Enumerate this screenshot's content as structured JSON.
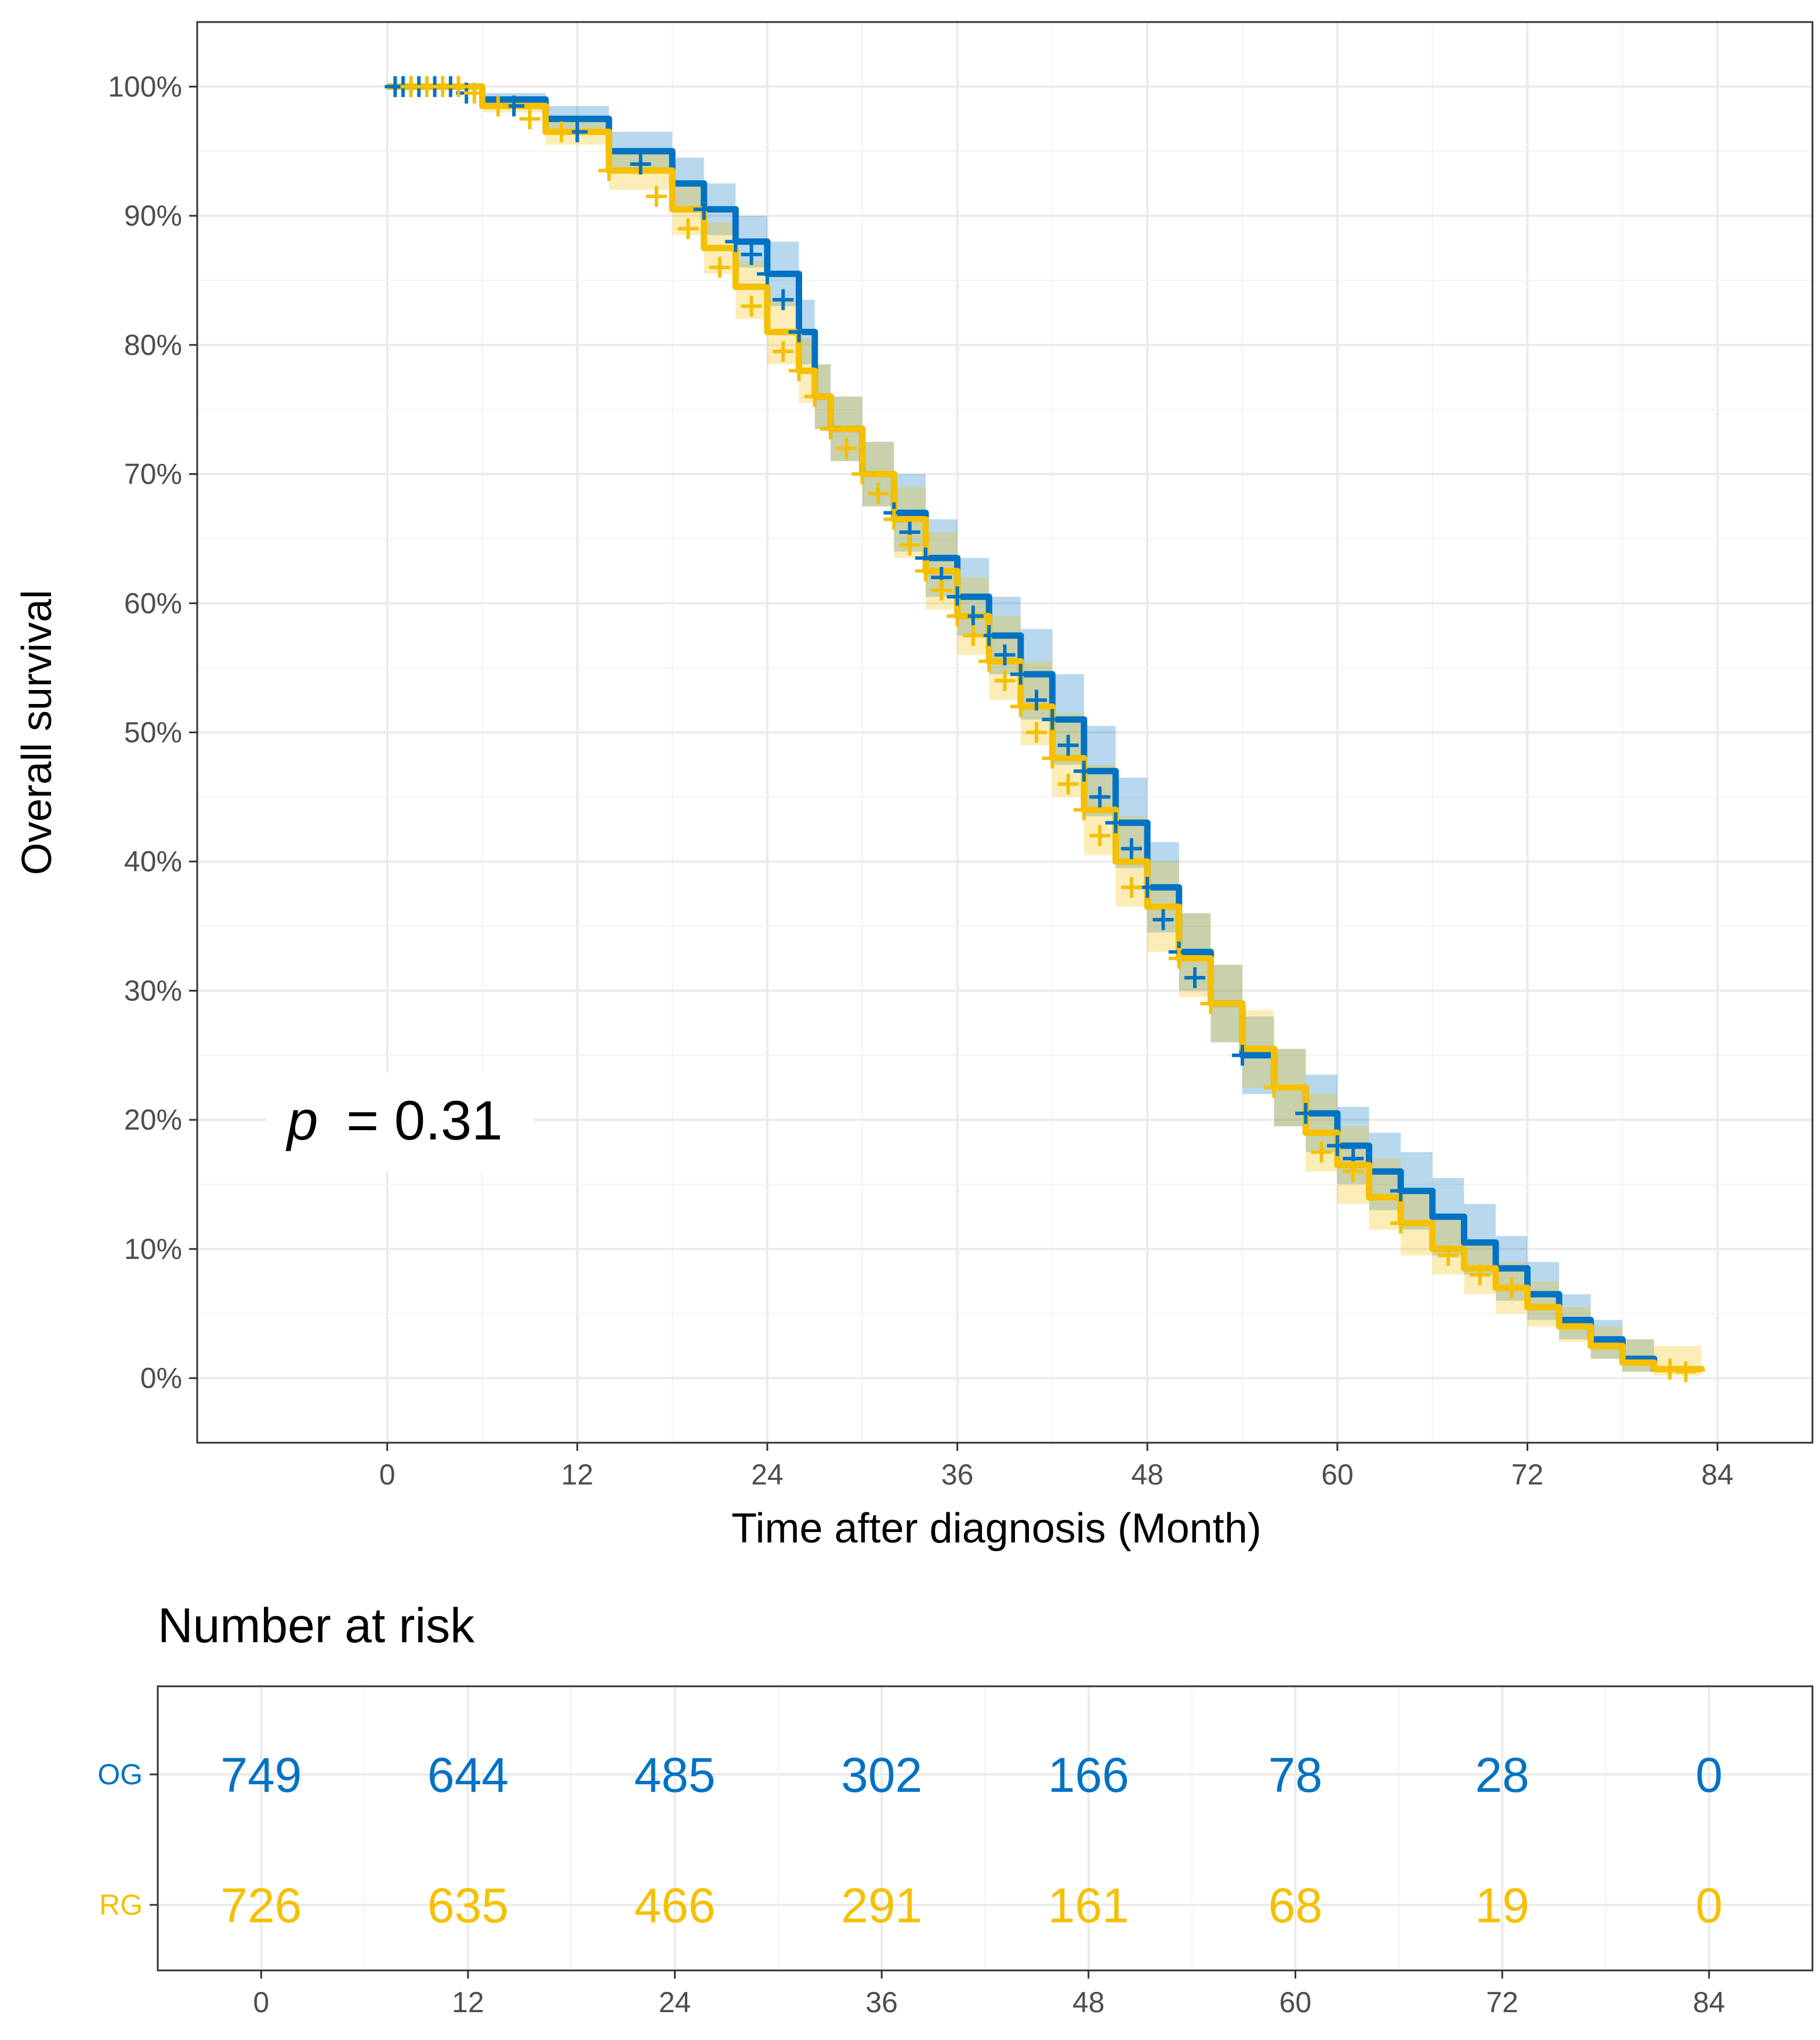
{
  "colors": {
    "OG": "#0072c3",
    "RG": "#f5c000"
  },
  "chart_data": [
    {
      "type": "line",
      "subtype": "kaplan-meier",
      "xlabel": "Time after diagnosis (Month)",
      "ylabel": "Overall survival",
      "xlim": [
        -12,
        90
      ],
      "ylim": [
        -0.05,
        1.05
      ],
      "x_ticks": [
        0,
        12,
        24,
        36,
        48,
        60,
        72,
        84
      ],
      "y_ticks": [
        0,
        0.1,
        0.2,
        0.3,
        0.4,
        0.5,
        0.6,
        0.7,
        0.8,
        0.9,
        1.0
      ],
      "y_tick_labels": [
        "0%",
        "10%",
        "20%",
        "30%",
        "40%",
        "50%",
        "60%",
        "70%",
        "80%",
        "90%",
        "100%"
      ],
      "grid": true,
      "annotation": {
        "p_symbol": "p",
        "p_text": "= 0.31"
      },
      "series": [
        {
          "group": "OG",
          "x": [
            0,
            6,
            10,
            14,
            18,
            20,
            22,
            24,
            26,
            27,
            28,
            30,
            32,
            34,
            36,
            38,
            40,
            42,
            44,
            46,
            48,
            50,
            52,
            54,
            56,
            58,
            60,
            62,
            64,
            66,
            68,
            70,
            72,
            74,
            76,
            78,
            80
          ],
          "y": [
            1.0,
            0.99,
            0.975,
            0.95,
            0.925,
            0.905,
            0.88,
            0.855,
            0.81,
            0.76,
            0.735,
            0.7,
            0.67,
            0.635,
            0.605,
            0.575,
            0.545,
            0.51,
            0.47,
            0.43,
            0.38,
            0.33,
            0.29,
            0.25,
            0.225,
            0.205,
            0.18,
            0.16,
            0.145,
            0.125,
            0.105,
            0.085,
            0.065,
            0.045,
            0.03,
            0.015,
            0.005
          ],
          "lower": [
            1.0,
            0.985,
            0.965,
            0.935,
            0.905,
            0.885,
            0.86,
            0.83,
            0.785,
            0.735,
            0.71,
            0.675,
            0.64,
            0.605,
            0.575,
            0.545,
            0.51,
            0.475,
            0.435,
            0.395,
            0.345,
            0.3,
            0.26,
            0.22,
            0.195,
            0.175,
            0.15,
            0.13,
            0.115,
            0.095,
            0.08,
            0.06,
            0.045,
            0.03,
            0.015,
            0.005,
            0.0
          ],
          "upper": [
            1.0,
            0.995,
            0.985,
            0.965,
            0.945,
            0.925,
            0.9,
            0.88,
            0.835,
            0.785,
            0.76,
            0.725,
            0.7,
            0.665,
            0.635,
            0.605,
            0.58,
            0.545,
            0.505,
            0.465,
            0.415,
            0.36,
            0.32,
            0.28,
            0.255,
            0.235,
            0.21,
            0.19,
            0.175,
            0.155,
            0.135,
            0.11,
            0.09,
            0.065,
            0.045,
            0.03,
            0.02
          ],
          "censor_x": [
            0.5,
            1,
            1.5,
            2,
            3,
            4,
            5,
            8,
            12,
            16,
            20,
            22,
            23,
            24,
            25,
            26,
            28,
            30,
            31,
            32,
            33,
            34,
            35,
            36,
            37,
            38,
            39,
            40,
            41,
            42,
            43,
            44,
            45,
            46,
            47,
            48,
            49,
            50,
            51,
            54,
            58,
            60,
            61,
            64
          ],
          "censor_y": [
            1.0,
            1.0,
            1.0,
            1.0,
            1.0,
            1.0,
            0.995,
            0.985,
            0.965,
            0.94,
            0.905,
            0.88,
            0.87,
            0.855,
            0.835,
            0.81,
            0.735,
            0.7,
            0.685,
            0.67,
            0.655,
            0.635,
            0.62,
            0.605,
            0.59,
            0.575,
            0.56,
            0.545,
            0.525,
            0.51,
            0.49,
            0.47,
            0.45,
            0.43,
            0.41,
            0.38,
            0.355,
            0.33,
            0.31,
            0.25,
            0.205,
            0.18,
            0.17,
            0.145
          ]
        },
        {
          "group": "RG",
          "x": [
            0,
            6,
            10,
            14,
            18,
            20,
            22,
            24,
            26,
            27,
            28,
            30,
            32,
            34,
            36,
            38,
            40,
            42,
            44,
            46,
            48,
            50,
            52,
            54,
            56,
            58,
            60,
            62,
            64,
            66,
            68,
            70,
            72,
            74,
            76,
            78,
            80,
            83
          ],
          "y": [
            1.0,
            0.985,
            0.965,
            0.935,
            0.905,
            0.875,
            0.845,
            0.81,
            0.78,
            0.76,
            0.735,
            0.7,
            0.665,
            0.625,
            0.59,
            0.555,
            0.52,
            0.48,
            0.44,
            0.4,
            0.365,
            0.325,
            0.29,
            0.255,
            0.225,
            0.19,
            0.165,
            0.14,
            0.12,
            0.1,
            0.085,
            0.07,
            0.055,
            0.04,
            0.025,
            0.012,
            0.007,
            0.005
          ],
          "lower": [
            1.0,
            0.98,
            0.955,
            0.92,
            0.885,
            0.855,
            0.82,
            0.785,
            0.755,
            0.735,
            0.71,
            0.675,
            0.635,
            0.595,
            0.56,
            0.525,
            0.49,
            0.45,
            0.405,
            0.365,
            0.33,
            0.295,
            0.26,
            0.225,
            0.195,
            0.16,
            0.135,
            0.115,
            0.095,
            0.08,
            0.065,
            0.05,
            0.04,
            0.028,
            0.015,
            0.005,
            0.002,
            0.0
          ],
          "upper": [
            1.0,
            0.99,
            0.975,
            0.95,
            0.925,
            0.895,
            0.865,
            0.835,
            0.805,
            0.785,
            0.76,
            0.725,
            0.69,
            0.655,
            0.62,
            0.59,
            0.555,
            0.515,
            0.475,
            0.435,
            0.4,
            0.36,
            0.32,
            0.285,
            0.255,
            0.22,
            0.195,
            0.17,
            0.145,
            0.125,
            0.105,
            0.09,
            0.075,
            0.055,
            0.04,
            0.03,
            0.025,
            0.025
          ],
          "censor_x": [
            1.5,
            2.5,
            3.5,
            4.5,
            5.5,
            7,
            9,
            11,
            14,
            17,
            19,
            21,
            23,
            25,
            26,
            27,
            28,
            29,
            30,
            31,
            32,
            33,
            34,
            35,
            36,
            37,
            38,
            39,
            40,
            41,
            42,
            43,
            44,
            45,
            47,
            50,
            52,
            56,
            59,
            61,
            64,
            67,
            69,
            71,
            81,
            82
          ],
          "censor_y": [
            1.0,
            1.0,
            1.0,
            1.0,
            0.995,
            0.985,
            0.975,
            0.965,
            0.935,
            0.915,
            0.89,
            0.86,
            0.83,
            0.795,
            0.78,
            0.76,
            0.735,
            0.72,
            0.7,
            0.685,
            0.665,
            0.645,
            0.625,
            0.61,
            0.59,
            0.575,
            0.555,
            0.54,
            0.52,
            0.5,
            0.48,
            0.46,
            0.44,
            0.42,
            0.38,
            0.325,
            0.29,
            0.225,
            0.175,
            0.16,
            0.12,
            0.095,
            0.08,
            0.07,
            0.007,
            0.005
          ]
        }
      ]
    },
    {
      "type": "table",
      "title": "Number at risk",
      "time_points": [
        "0",
        "12",
        "24",
        "36",
        "48",
        "60",
        "72",
        "84"
      ],
      "rows": [
        {
          "label": "OG",
          "values": [
            "749",
            "644",
            "485",
            "302",
            "166",
            "78",
            "28",
            "0"
          ]
        },
        {
          "label": "RG",
          "values": [
            "726",
            "635",
            "466",
            "291",
            "161",
            "68",
            "19",
            "0"
          ]
        }
      ]
    }
  ]
}
